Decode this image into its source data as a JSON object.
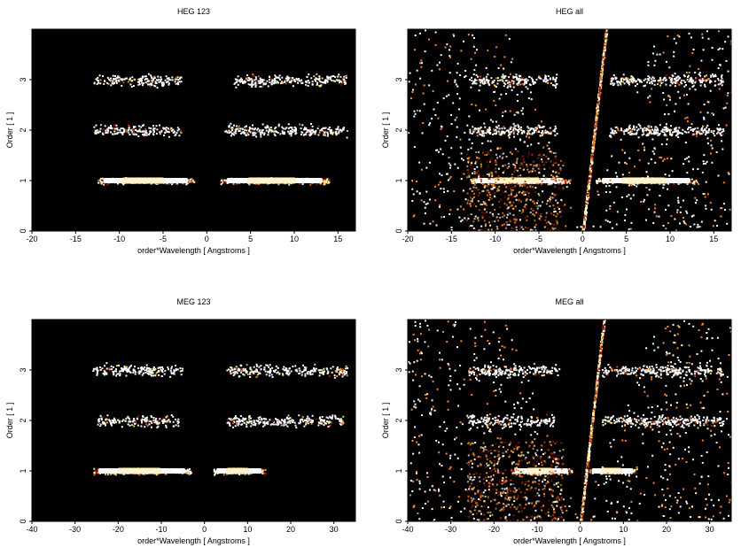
{
  "figure": {
    "background": "#ffffff",
    "plot_background": "#000000"
  },
  "chart_data": [
    {
      "type": "heatmap",
      "title": "HEG 123",
      "xlabel": "order*Wavelength [ Angstroms ]",
      "ylabel": "Order [ 1 ]",
      "xlim": [
        -20,
        17
      ],
      "ylim": [
        0,
        4
      ],
      "xticks": [
        -20,
        -15,
        -10,
        -5,
        0,
        5,
        10,
        15
      ],
      "yticks": [
        0,
        1,
        2,
        3
      ],
      "colormap": "black-red-yellow-white",
      "bands": [
        {
          "order": 1,
          "x_ranges": [
            [
              -12.5,
              -1.5
            ],
            [
              1.5,
              14
            ]
          ],
          "intensity": "high"
        },
        {
          "order": 2,
          "x_ranges": [
            [
              -13,
              -3
            ],
            [
              2,
              16
            ]
          ],
          "intensity": "low"
        },
        {
          "order": 3,
          "x_ranges": [
            [
              -13,
              -3
            ],
            [
              3,
              16
            ]
          ],
          "intensity": "low"
        }
      ],
      "fan": false
    },
    {
      "type": "heatmap",
      "title": "HEG all",
      "xlabel": "order*Wavelength [ Angstroms ]",
      "ylabel": "Order [ 1 ]",
      "xlim": [
        -20,
        17
      ],
      "ylim": [
        0,
        4
      ],
      "xticks": [
        -20,
        -15,
        -10,
        -5,
        0,
        5,
        10,
        15
      ],
      "yticks": [
        0,
        1,
        2,
        3
      ],
      "colormap": "black-red-yellow-white",
      "bands": [
        {
          "order": 1,
          "x_ranges": [
            [
              -13,
              -1.5
            ],
            [
              1.5,
              13
            ]
          ],
          "intensity": "high"
        },
        {
          "order": 2,
          "x_ranges": [
            [
              -13,
              -3
            ],
            [
              3,
              16
            ]
          ],
          "intensity": "low"
        },
        {
          "order": 3,
          "x_ranges": [
            [
              -13,
              -3
            ],
            [
              3,
              16
            ]
          ],
          "intensity": "low"
        }
      ],
      "fan": true
    },
    {
      "type": "heatmap",
      "title": "MEG 123",
      "xlabel": "order*Wavelength [ Angstroms ]",
      "ylabel": "Order [ 1 ]",
      "xlim": [
        -40,
        35
      ],
      "ylim": [
        0,
        4
      ],
      "xticks": [
        -40,
        -30,
        -20,
        -10,
        0,
        10,
        20,
        30
      ],
      "yticks": [
        0,
        1,
        2,
        3
      ],
      "colormap": "black-red-yellow-white",
      "bands": [
        {
          "order": 1,
          "x_ranges": [
            [
              -26,
              -3
            ],
            [
              2,
              14
            ]
          ],
          "intensity": "high"
        },
        {
          "order": 2,
          "x_ranges": [
            [
              -25,
              -6
            ],
            [
              5,
              32
            ]
          ],
          "intensity": "low"
        },
        {
          "order": 3,
          "x_ranges": [
            [
              -26,
              -5
            ],
            [
              5,
              33
            ]
          ],
          "intensity": "low"
        }
      ],
      "fan": false
    },
    {
      "type": "heatmap",
      "title": "MEG all",
      "xlabel": "order*Wavelength [ Angstroms ]",
      "ylabel": "Order [ 1 ]",
      "xlim": [
        -40,
        35
      ],
      "ylim": [
        0,
        4
      ],
      "xticks": [
        -40,
        -30,
        -20,
        -10,
        0,
        10,
        20,
        30
      ],
      "yticks": [
        0,
        1,
        2,
        3
      ],
      "colormap": "black-red-yellow-white",
      "bands": [
        {
          "order": 1,
          "x_ranges": [
            [
              -16,
              -2
            ],
            [
              2,
              13
            ]
          ],
          "intensity": "high"
        },
        {
          "order": 2,
          "x_ranges": [
            [
              -26,
              -6
            ],
            [
              5,
              33
            ]
          ],
          "intensity": "low"
        },
        {
          "order": 3,
          "x_ranges": [
            [
              -26,
              -5
            ],
            [
              5,
              33
            ]
          ],
          "intensity": "low"
        }
      ],
      "fan": true
    }
  ]
}
